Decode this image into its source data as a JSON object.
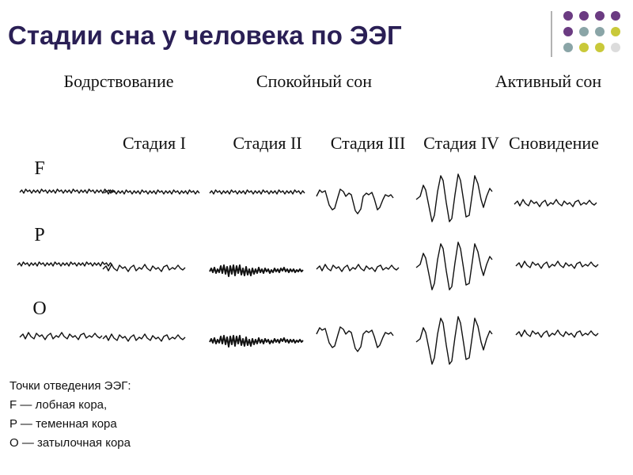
{
  "title": "Стадии сна у человека по ЭЭГ",
  "groups": [
    "Бодрствование",
    "Спокойный сон",
    "Активный сон"
  ],
  "stages": [
    "Стадия I",
    "Стадия II",
    "Стадия III",
    "Стадия IV",
    "Сновидение"
  ],
  "leads": [
    "F",
    "P",
    "O"
  ],
  "caption": [
    "Точки отведения ЭЭГ:",
    "F — лобная кора,",
    "P — теменная кора",
    "O — затылочная кора"
  ]
}
